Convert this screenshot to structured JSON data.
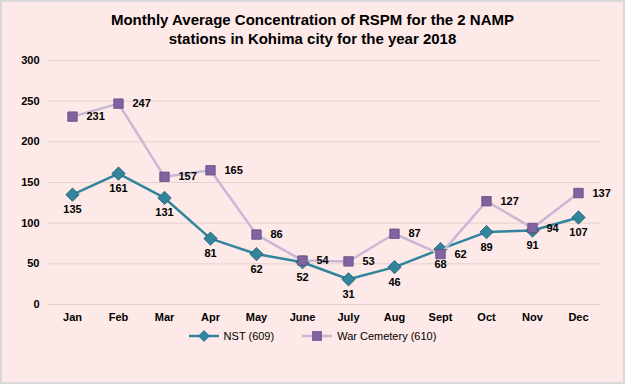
{
  "chart_data": {
    "type": "line",
    "title": "Monthly Average Concentration of RSPM for the 2 NAMP stations in Kohima city for the year 2018",
    "categories": [
      "Jan",
      "Feb",
      "Mar",
      "Apr",
      "May",
      "June",
      "July",
      "Aug",
      "Sept",
      "Oct",
      "Nov",
      "Dec"
    ],
    "series": [
      {
        "name": "NST (609)",
        "color": "#31859c",
        "marker": "diamond",
        "values": [
          135,
          161,
          131,
          81,
          62,
          52,
          31,
          46,
          68,
          89,
          91,
          107
        ]
      },
      {
        "name": "War Cemetery (610)",
        "color": "#8064a2",
        "marker": "square",
        "values": [
          231,
          247,
          157,
          165,
          86,
          54,
          53,
          87,
          62,
          127,
          94,
          137
        ]
      }
    ],
    "ylim": [
      0,
      300
    ],
    "yticks": [
      0,
      50,
      100,
      150,
      200,
      250,
      300
    ],
    "grid": true,
    "legend": "bottom",
    "data_labels": true
  }
}
